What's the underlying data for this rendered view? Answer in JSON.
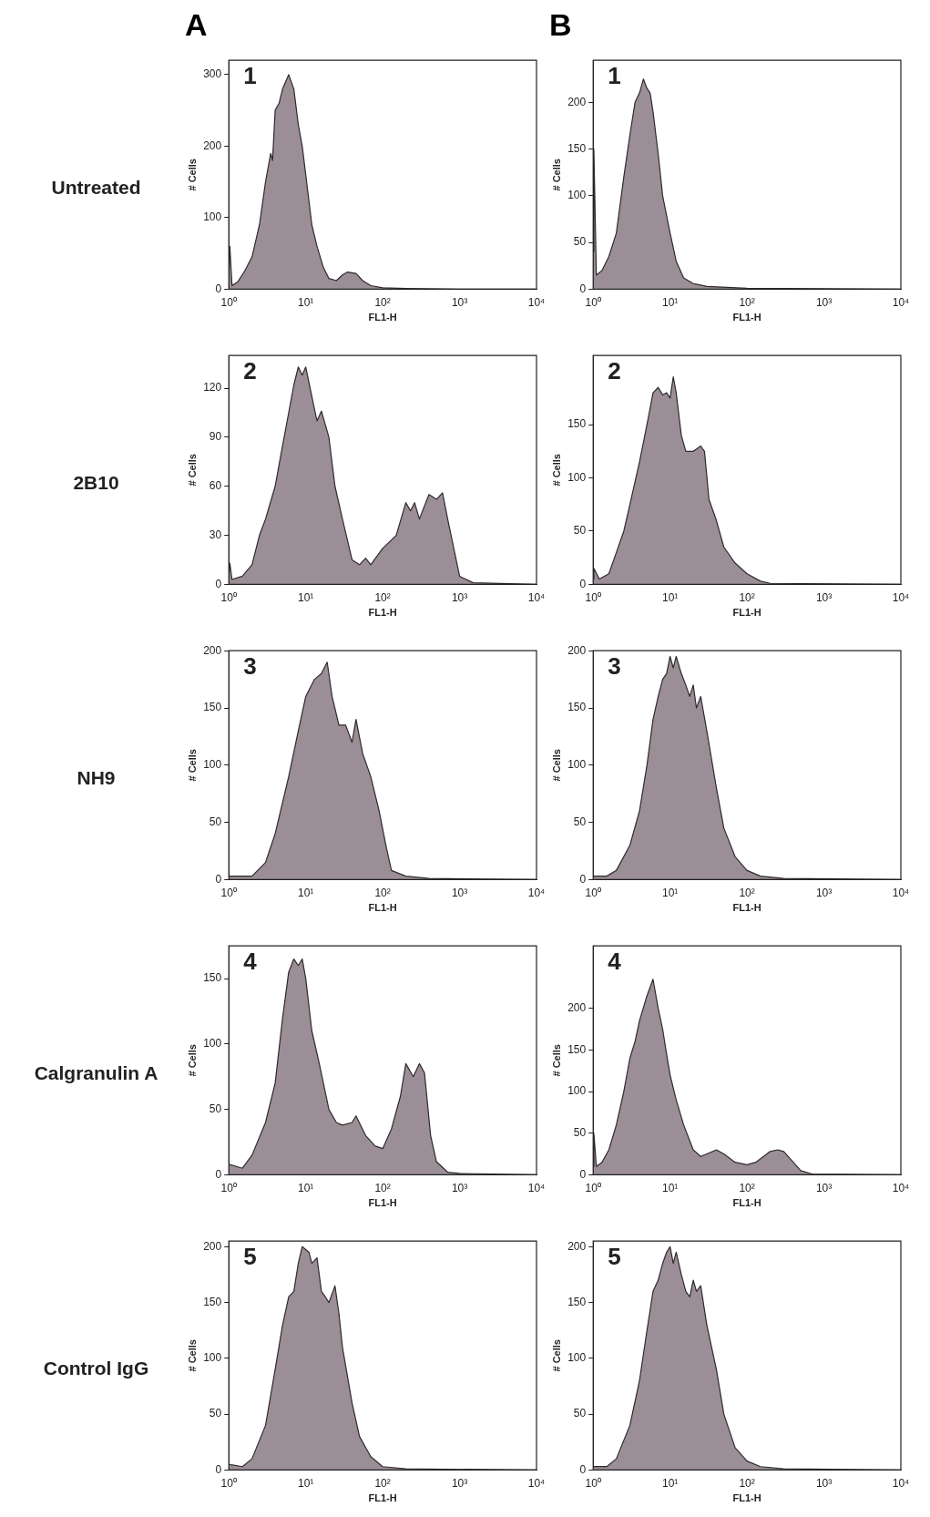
{
  "chart_data": [
    {
      "type": "area",
      "title": "1",
      "xlabel": "FL1-H",
      "ylabel": "# Cells",
      "log": "x",
      "xlim": [
        1,
        10000
      ],
      "xticks": [
        {
          "value": 1,
          "label": "10⁰"
        },
        {
          "value": 10,
          "label": "10¹"
        },
        {
          "value": 100,
          "label": "10²"
        },
        {
          "value": 1000,
          "label": "10³"
        },
        {
          "value": 10000,
          "label": "10⁴"
        }
      ],
      "ylim": [
        0,
        320
      ],
      "yticks": [
        0,
        100,
        200,
        300
      ],
      "annotations": [
        "A",
        "Untreated"
      ],
      "series": [
        {
          "color": "#9c8e96",
          "x": [
            1,
            1.03,
            1.1,
            1.3,
            1.6,
            2,
            2.5,
            3,
            3.5,
            3.7,
            4,
            4.5,
            5,
            6,
            7,
            8,
            9,
            10,
            12,
            14,
            17,
            20,
            25,
            30,
            35,
            45,
            55,
            70,
            100,
            200,
            1000,
            10000
          ],
          "values": [
            20,
            60,
            5,
            10,
            25,
            45,
            90,
            150,
            190,
            180,
            250,
            260,
            280,
            300,
            280,
            230,
            200,
            160,
            90,
            60,
            30,
            15,
            12,
            20,
            24,
            22,
            12,
            5,
            2,
            1,
            0,
            0
          ]
        }
      ]
    },
    {
      "type": "area",
      "title": "1",
      "xlabel": "FL1-H",
      "ylabel": "# Cells",
      "log": "x",
      "xlim": [
        1,
        10000
      ],
      "xticks": [
        {
          "value": 1,
          "label": "10⁰"
        },
        {
          "value": 10,
          "label": "10¹"
        },
        {
          "value": 100,
          "label": "10²"
        },
        {
          "value": 1000,
          "label": "10³"
        },
        {
          "value": 10000,
          "label": "10⁴"
        }
      ],
      "ylim": [
        0,
        245
      ],
      "yticks": [
        0,
        50,
        100,
        150,
        200
      ],
      "annotations": [
        "B"
      ],
      "series": [
        {
          "color": "#9c8e96",
          "x": [
            1,
            1.02,
            1.1,
            1.3,
            1.6,
            2,
            2.5,
            3,
            3.5,
            4,
            4.5,
            5,
            5.5,
            6,
            7,
            8,
            10,
            12,
            15,
            20,
            30,
            100,
            10000
          ],
          "values": [
            40,
            150,
            15,
            20,
            35,
            60,
            120,
            165,
            200,
            210,
            225,
            215,
            210,
            190,
            145,
            100,
            60,
            30,
            12,
            6,
            3,
            1,
            0
          ]
        }
      ]
    },
    {
      "type": "area",
      "title": "2",
      "xlabel": "FL1-H",
      "ylabel": "# Cells",
      "log": "x",
      "xlim": [
        1,
        10000
      ],
      "xticks": [
        {
          "value": 1,
          "label": "10⁰"
        },
        {
          "value": 10,
          "label": "10¹"
        },
        {
          "value": 100,
          "label": "10²"
        },
        {
          "value": 1000,
          "label": "10³"
        },
        {
          "value": 10000,
          "label": "10⁴"
        }
      ],
      "ylim": [
        0,
        140
      ],
      "yticks": [
        0,
        30,
        60,
        90,
        120
      ],
      "annotations": [
        "2B10"
      ],
      "series": [
        {
          "color": "#9c8e96",
          "x": [
            1,
            1.03,
            1.1,
            1.5,
            2,
            2.5,
            3,
            4,
            5,
            6,
            7,
            8,
            9,
            10,
            12,
            14,
            16,
            20,
            24,
            30,
            40,
            50,
            60,
            70,
            100,
            150,
            200,
            230,
            260,
            300,
            400,
            500,
            600,
            700,
            1000,
            1500,
            10000
          ],
          "values": [
            5,
            13,
            3,
            5,
            12,
            30,
            40,
            60,
            85,
            105,
            122,
            133,
            128,
            133,
            115,
            100,
            106,
            90,
            60,
            40,
            15,
            12,
            16,
            12,
            22,
            30,
            50,
            45,
            50,
            40,
            55,
            52,
            56,
            40,
            5,
            1,
            0
          ]
        }
      ]
    },
    {
      "type": "area",
      "title": "2",
      "xlabel": "FL1-H",
      "ylabel": "# Cells",
      "log": "x",
      "xlim": [
        1,
        10000
      ],
      "xticks": [
        {
          "value": 1,
          "label": "10⁰"
        },
        {
          "value": 10,
          "label": "10¹"
        },
        {
          "value": 100,
          "label": "10²"
        },
        {
          "value": 1000,
          "label": "10³"
        },
        {
          "value": 10000,
          "label": "10⁴"
        }
      ],
      "ylim": [
        0,
        215
      ],
      "yticks": [
        0,
        50,
        100,
        150
      ],
      "series": [
        {
          "color": "#9c8e96",
          "x": [
            1,
            1.02,
            1.2,
            1.6,
            2,
            2.5,
            3,
            4,
            5,
            6,
            7,
            8,
            9,
            10,
            11,
            12,
            14,
            16,
            20,
            25,
            28,
            32,
            40,
            50,
            70,
            100,
            150,
            200,
            10000
          ],
          "values": [
            5,
            15,
            5,
            10,
            30,
            50,
            75,
            115,
            150,
            180,
            185,
            178,
            180,
            175,
            195,
            180,
            140,
            125,
            125,
            130,
            125,
            80,
            60,
            35,
            20,
            10,
            3,
            1,
            0
          ]
        }
      ]
    },
    {
      "type": "area",
      "title": "3",
      "xlabel": "FL1-H",
      "ylabel": "# Cells",
      "log": "x",
      "xlim": [
        1,
        10000
      ],
      "xticks": [
        {
          "value": 1,
          "label": "10⁰"
        },
        {
          "value": 10,
          "label": "10¹"
        },
        {
          "value": 100,
          "label": "10²"
        },
        {
          "value": 1000,
          "label": "10³"
        },
        {
          "value": 10000,
          "label": "10⁴"
        }
      ],
      "ylim": [
        0,
        200
      ],
      "yticks": [
        0,
        50,
        100,
        150,
        200
      ],
      "annotations": [
        "NH9"
      ],
      "series": [
        {
          "color": "#9c8e96",
          "x": [
            1,
            2,
            3,
            4,
            6,
            8,
            10,
            13,
            16,
            19,
            22,
            27,
            33,
            40,
            45,
            55,
            70,
            90,
            110,
            130,
            200,
            400,
            10000
          ],
          "values": [
            3,
            3,
            15,
            40,
            90,
            130,
            160,
            175,
            180,
            190,
            160,
            135,
            135,
            120,
            140,
            110,
            90,
            60,
            30,
            8,
            3,
            1,
            0
          ]
        }
      ]
    },
    {
      "type": "area",
      "title": "3",
      "xlabel": "FL1-H",
      "ylabel": "# Cells",
      "log": "x",
      "xlim": [
        1,
        10000
      ],
      "xticks": [
        {
          "value": 1,
          "label": "10⁰"
        },
        {
          "value": 10,
          "label": "10¹"
        },
        {
          "value": 100,
          "label": "10²"
        },
        {
          "value": 1000,
          "label": "10³"
        },
        {
          "value": 10000,
          "label": "10⁴"
        }
      ],
      "ylim": [
        0,
        200
      ],
      "yticks": [
        0,
        50,
        100,
        150,
        200
      ],
      "series": [
        {
          "color": "#9c8e96",
          "x": [
            1,
            1.5,
            2,
            3,
            4,
            5,
            6,
            7,
            8,
            9,
            10,
            11,
            12,
            14,
            16,
            18,
            20,
            22,
            25,
            30,
            40,
            50,
            70,
            100,
            150,
            300,
            10000
          ],
          "values": [
            3,
            3,
            8,
            30,
            60,
            100,
            140,
            160,
            175,
            180,
            195,
            185,
            195,
            180,
            170,
            160,
            170,
            150,
            160,
            130,
            80,
            45,
            20,
            8,
            3,
            1,
            0
          ]
        }
      ]
    },
    {
      "type": "area",
      "title": "4",
      "xlabel": "FL1-H",
      "ylabel": "# Cells",
      "log": "x",
      "xlim": [
        1,
        10000
      ],
      "xticks": [
        {
          "value": 1,
          "label": "10⁰"
        },
        {
          "value": 10,
          "label": "10¹"
        },
        {
          "value": 100,
          "label": "10²"
        },
        {
          "value": 1000,
          "label": "10³"
        },
        {
          "value": 10000,
          "label": "10⁴"
        }
      ],
      "ylim": [
        0,
        175
      ],
      "yticks": [
        0,
        50,
        100,
        150
      ],
      "annotations": [
        "Calgranulin A"
      ],
      "series": [
        {
          "color": "#9c8e96",
          "x": [
            1,
            1.5,
            2,
            3,
            4,
            5,
            6,
            7,
            8,
            9,
            10,
            12,
            15,
            20,
            25,
            30,
            40,
            45,
            60,
            80,
            100,
            130,
            170,
            200,
            250,
            300,
            350,
            420,
            500,
            700,
            1000,
            10000
          ],
          "values": [
            8,
            5,
            15,
            40,
            70,
            120,
            155,
            165,
            160,
            165,
            150,
            110,
            85,
            50,
            40,
            38,
            40,
            45,
            30,
            22,
            20,
            35,
            60,
            85,
            75,
            85,
            78,
            30,
            10,
            2,
            1,
            0
          ]
        }
      ]
    },
    {
      "type": "area",
      "title": "4",
      "xlabel": "FL1-H",
      "ylabel": "# Cells",
      "log": "x",
      "xlim": [
        1,
        10000
      ],
      "xticks": [
        {
          "value": 1,
          "label": "10⁰"
        },
        {
          "value": 10,
          "label": "10¹"
        },
        {
          "value": 100,
          "label": "10²"
        },
        {
          "value": 1000,
          "label": "10³"
        },
        {
          "value": 10000,
          "label": "10⁴"
        }
      ],
      "ylim": [
        0,
        275
      ],
      "yticks": [
        0,
        50,
        100,
        150,
        200
      ],
      "series": [
        {
          "color": "#9c8e96",
          "x": [
            1,
            1.02,
            1.1,
            1.3,
            1.6,
            2,
            2.5,
            3,
            3.5,
            4,
            5,
            6,
            7,
            8,
            9,
            10,
            12,
            15,
            20,
            25,
            30,
            40,
            50,
            70,
            100,
            130,
            200,
            250,
            300,
            400,
            500,
            700,
            10000
          ],
          "values": [
            10,
            50,
            10,
            15,
            30,
            60,
            100,
            140,
            160,
            185,
            215,
            235,
            200,
            175,
            145,
            120,
            90,
            60,
            30,
            22,
            25,
            30,
            25,
            15,
            12,
            15,
            28,
            30,
            28,
            15,
            5,
            1,
            0
          ]
        }
      ]
    },
    {
      "type": "area",
      "title": "5",
      "xlabel": "FL1-H",
      "ylabel": "# Cells",
      "log": "x",
      "xlim": [
        1,
        10000
      ],
      "xticks": [
        {
          "value": 1,
          "label": "10⁰"
        },
        {
          "value": 10,
          "label": "10¹"
        },
        {
          "value": 100,
          "label": "10²"
        },
        {
          "value": 1000,
          "label": "10³"
        },
        {
          "value": 10000,
          "label": "10⁴"
        }
      ],
      "ylim": [
        0,
        205
      ],
      "yticks": [
        0,
        50,
        100,
        150,
        200
      ],
      "annotations": [
        "Control IgG"
      ],
      "series": [
        {
          "color": "#9c8e96",
          "x": [
            1,
            1.5,
            2,
            3,
            4,
            5,
            6,
            7,
            8,
            9,
            11,
            12,
            14,
            16,
            18,
            20,
            24,
            27,
            30,
            40,
            50,
            70,
            100,
            200,
            10000
          ],
          "values": [
            5,
            3,
            10,
            40,
            90,
            130,
            155,
            160,
            185,
            200,
            195,
            185,
            190,
            160,
            155,
            150,
            165,
            140,
            110,
            60,
            30,
            12,
            3,
            1,
            0
          ]
        }
      ]
    },
    {
      "type": "area",
      "title": "5",
      "xlabel": "FL1-H",
      "ylabel": "# Cells",
      "log": "x",
      "xlim": [
        1,
        10000
      ],
      "xticks": [
        {
          "value": 1,
          "label": "10⁰"
        },
        {
          "value": 10,
          "label": "10¹"
        },
        {
          "value": 100,
          "label": "10²"
        },
        {
          "value": 1000,
          "label": "10³"
        },
        {
          "value": 10000,
          "label": "10⁴"
        }
      ],
      "ylim": [
        0,
        205
      ],
      "yticks": [
        0,
        50,
        100,
        150,
        200
      ],
      "series": [
        {
          "color": "#9c8e96",
          "x": [
            1,
            1.5,
            2,
            3,
            4,
            5,
            6,
            7,
            8,
            9,
            10,
            11,
            12,
            14,
            16,
            18,
            20,
            22,
            25,
            30,
            40,
            50,
            70,
            100,
            150,
            300,
            10000
          ],
          "values": [
            3,
            3,
            10,
            40,
            80,
            125,
            160,
            170,
            185,
            195,
            200,
            185,
            195,
            175,
            160,
            155,
            170,
            160,
            165,
            130,
            90,
            50,
            20,
            8,
            3,
            1,
            0
          ]
        }
      ]
    }
  ]
}
